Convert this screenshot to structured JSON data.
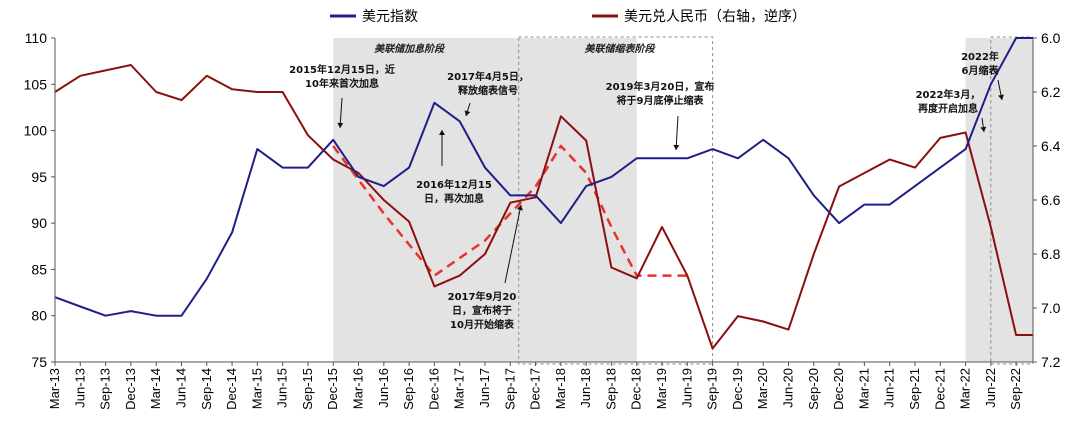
{
  "chart_data": {
    "type": "line",
    "title": "",
    "xlabel": "",
    "ylabel": "",
    "y_left_range": [
      75,
      110
    ],
    "y_right_range": [
      6.0,
      7.2
    ],
    "y_right_inverted": true,
    "x_range": [
      "2013-03",
      "2022-11"
    ],
    "grid": false,
    "legend_position": "top",
    "left_ticks": [
      "75",
      "80",
      "85",
      "90",
      "95",
      "100",
      "105",
      "110"
    ],
    "right_ticks": [
      "6.0",
      "6.2",
      "6.4",
      "6.6",
      "6.8",
      "7.0",
      "7.2"
    ],
    "x_ticks": [
      "Mar-13",
      "Jun-13",
      "Sep-13",
      "Dec-13",
      "Mar-14",
      "Jun-14",
      "Sep-14",
      "Dec-14",
      "Mar-15",
      "Jun-15",
      "Sep-15",
      "Dec-15",
      "Mar-16",
      "Jun-16",
      "Sep-16",
      "Dec-16",
      "Mar-17",
      "Jun-17",
      "Sep-17",
      "Dec-17",
      "Mar-18",
      "Jun-18",
      "Sep-18",
      "Dec-18",
      "Mar-19",
      "Jun-19",
      "Sep-19",
      "Dec-19",
      "Mar-20",
      "Jun-20",
      "Sep-20",
      "Dec-20",
      "Mar-21",
      "Jun-21",
      "Sep-21",
      "Dec-21",
      "Mar-22",
      "Jun-22",
      "Sep-22"
    ],
    "colors": {
      "usd": "#1f1f8a",
      "cny": "#8b0f0f",
      "trend": "#e8332a",
      "shade": "#e3e3e3"
    },
    "series": [
      {
        "name": "美元指数",
        "axis": "left",
        "x": [
          "2013-03",
          "2013-06",
          "2013-09",
          "2013-12",
          "2014-03",
          "2014-06",
          "2014-09",
          "2014-12",
          "2015-03",
          "2015-06",
          "2015-09",
          "2015-12",
          "2016-03",
          "2016-06",
          "2016-09",
          "2016-12",
          "2017-03",
          "2017-06",
          "2017-09",
          "2017-12",
          "2018-03",
          "2018-06",
          "2018-09",
          "2018-12",
          "2019-03",
          "2019-06",
          "2019-09",
          "2019-12",
          "2020-03",
          "2020-06",
          "2020-09",
          "2020-12",
          "2021-03",
          "2021-06",
          "2021-09",
          "2021-12",
          "2022-03",
          "2022-06",
          "2022-09",
          "2022-11"
        ],
        "values": [
          82,
          81,
          80,
          80.5,
          80,
          80,
          84,
          89,
          98,
          96,
          96,
          99,
          95,
          94,
          96,
          103,
          101,
          96,
          93,
          93,
          90,
          94,
          95,
          97,
          97,
          97,
          98,
          97,
          99,
          97,
          93,
          90,
          92,
          92,
          94,
          96,
          98,
          105,
          110,
          110
        ]
      },
      {
        "name": "美元兑人民币（右轴，逆序）",
        "axis": "right",
        "x": [
          "2013-03",
          "2013-06",
          "2013-09",
          "2013-12",
          "2014-03",
          "2014-06",
          "2014-09",
          "2014-12",
          "2015-03",
          "2015-06",
          "2015-09",
          "2015-12",
          "2016-03",
          "2016-06",
          "2016-09",
          "2016-12",
          "2017-03",
          "2017-06",
          "2017-09",
          "2017-12",
          "2018-03",
          "2018-06",
          "2018-09",
          "2018-12",
          "2019-03",
          "2019-06",
          "2019-09",
          "2019-12",
          "2020-03",
          "2020-06",
          "2020-09",
          "2020-12",
          "2021-03",
          "2021-06",
          "2021-09",
          "2021-12",
          "2022-03",
          "2022-06",
          "2022-09",
          "2022-11"
        ],
        "values": [
          6.2,
          6.14,
          6.12,
          6.1,
          6.2,
          6.23,
          6.14,
          6.19,
          6.2,
          6.2,
          6.36,
          6.45,
          6.5,
          6.6,
          6.68,
          6.92,
          6.88,
          6.8,
          6.61,
          6.59,
          6.29,
          6.38,
          6.85,
          6.89,
          6.7,
          6.88,
          7.15,
          7.03,
          7.05,
          7.08,
          6.8,
          6.55,
          6.5,
          6.45,
          6.48,
          6.37,
          6.35,
          6.7,
          7.1,
          7.1
        ]
      }
    ],
    "trend_lines": [
      {
        "axis": "right",
        "x": [
          "2015-12",
          "2016-06",
          "2016-12",
          "2017-06",
          "2017-12",
          "2018-03",
          "2018-06",
          "2018-09",
          "2018-12",
          "2019-06"
        ],
        "values": [
          6.4,
          6.65,
          6.88,
          6.75,
          6.55,
          6.4,
          6.5,
          6.7,
          6.88,
          6.88
        ]
      }
    ],
    "shaded_periods": [
      {
        "from": "2015-12",
        "to": "2018-12",
        "label": "美联储加息阶段",
        "style": "fill"
      },
      {
        "from": "2017-10",
        "to": "2019-09",
        "label": "美联储缩表阶段",
        "style": "dashed"
      },
      {
        "from": "2022-03",
        "to": "2022-11",
        "label": "",
        "style": "fill"
      },
      {
        "from": "2022-06",
        "to": "2022-11",
        "label": "",
        "style": "dashed"
      }
    ],
    "annotations": [
      {
        "text": [
          "2015年12月15日，近",
          "10年来首次加息"
        ]
      },
      {
        "text": [
          "2017年4月5日，",
          "释放缩表信号"
        ]
      },
      {
        "text": [
          "2016年12月15",
          "日，再次加息"
        ]
      },
      {
        "text": [
          "2017年9月20",
          "日，宣布将于",
          "10月开始缩表"
        ]
      },
      {
        "text": [
          "2019年3月20日，宣布",
          "将于9月底停止缩表"
        ]
      },
      {
        "text": [
          "2022年3月，",
          "再度开启加息"
        ]
      },
      {
        "text": [
          "2022年",
          "6月缩表"
        ]
      }
    ]
  }
}
